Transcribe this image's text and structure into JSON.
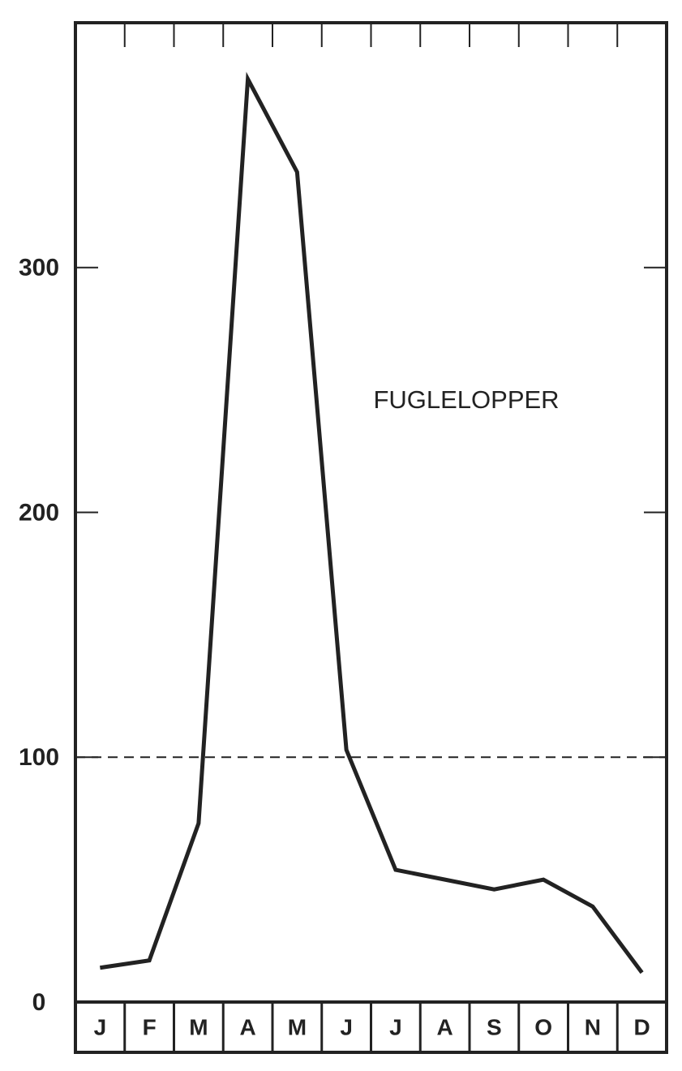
{
  "chart_data": {
    "type": "line",
    "annotation": "FUGLELOPPER",
    "categories": [
      "J",
      "F",
      "M",
      "A",
      "M",
      "J",
      "J",
      "A",
      "S",
      "O",
      "N",
      "D"
    ],
    "values": [
      14,
      17,
      73,
      377,
      339,
      103,
      54,
      50,
      46,
      50,
      39,
      12
    ],
    "color": "#222222",
    "ylim": [
      0,
      400
    ],
    "yticks": [
      0,
      100,
      200,
      300
    ],
    "reference_line": 100
  }
}
